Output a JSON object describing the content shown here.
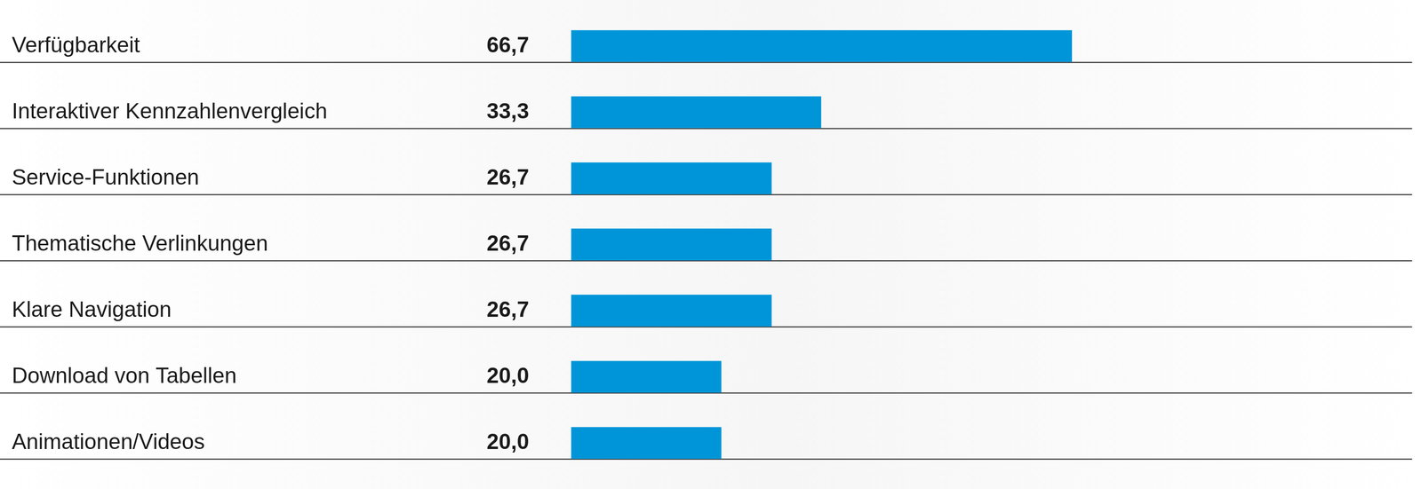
{
  "chart_data": {
    "type": "bar",
    "orientation": "horizontal",
    "categories": [
      "Verfügbarkeit",
      "Interaktiver Kennzahlenvergleich",
      "Service-Funktionen",
      "Thematische Verlinkungen",
      "Klare Navigation",
      "Download von Tabellen",
      "Animationen/Videos"
    ],
    "values": [
      66.7,
      33.3,
      26.7,
      26.7,
      26.7,
      20.0,
      20.0
    ],
    "value_labels": [
      "66,7",
      "33,3",
      "26,7",
      "26,7",
      "26,7",
      "20,0",
      "20,0"
    ],
    "color": "#0095d8",
    "xlim": [
      0,
      112
    ],
    "data_labels": true,
    "tick_labels": "y",
    "grid": false
  }
}
